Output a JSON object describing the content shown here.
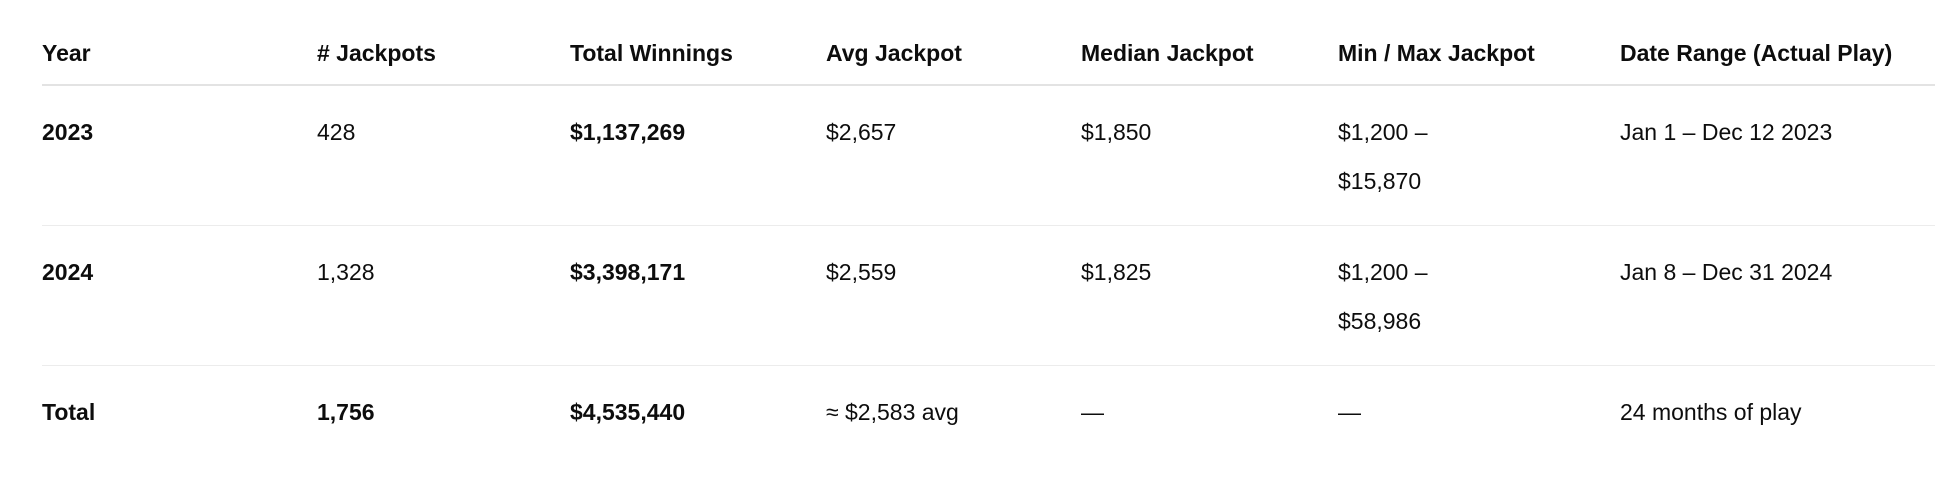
{
  "table": {
    "headers": [
      "Year",
      "# Jackpots",
      "Total Winnings",
      "Avg Jackpot",
      "Median Jackpot",
      "Min / Max Jackpot",
      "Date Range (Actual Play)"
    ],
    "rows": [
      [
        "2023",
        "428",
        "$1,137,269",
        "$2,657",
        "$1,850",
        "$1,200 – $15,870",
        "Jan 1 – Dec 12 2023"
      ],
      [
        "2024",
        "1,328",
        "$3,398,171",
        "$2,559",
        "$1,825",
        "$1,200 – $58,986",
        "Jan 8 – Dec 31 2024"
      ],
      [
        "Total",
        "1,756",
        "$4,535,440",
        "≈ $2,583 avg",
        "—",
        "—",
        "24 months of play"
      ]
    ]
  }
}
